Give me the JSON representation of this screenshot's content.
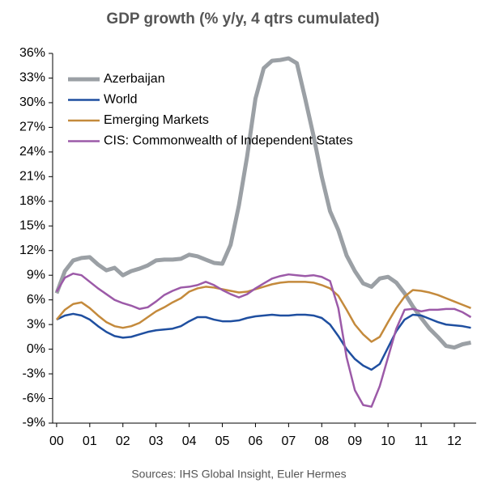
{
  "chart_data": {
    "type": "line",
    "title": "GDP growth (% y/y, 4 qtrs cumulated)",
    "source": "Sources: IHS Global Insight, Euler Hermes",
    "x": [
      0,
      0.25,
      0.5,
      0.75,
      1,
      1.25,
      1.5,
      1.75,
      2,
      2.25,
      2.5,
      2.75,
      3,
      3.25,
      3.5,
      3.75,
      4,
      4.25,
      4.5,
      4.75,
      5,
      5.25,
      5.5,
      5.75,
      6,
      6.25,
      6.5,
      6.75,
      7,
      7.25,
      7.5,
      7.75,
      8,
      8.25,
      8.5,
      8.75,
      9,
      9.25,
      9.5,
      9.75,
      10,
      10.25,
      10.5,
      10.75,
      11,
      11.25,
      11.5,
      11.75,
      12,
      12.25,
      12.5
    ],
    "series": [
      {
        "name": "Azerbaijan",
        "color": "#9ba0a5",
        "values": [
          6.8,
          9.5,
          10.8,
          11.1,
          11.2,
          10.3,
          9.6,
          9.9,
          9.0,
          9.5,
          9.8,
          10.2,
          10.8,
          10.9,
          10.9,
          11.0,
          11.5,
          11.3,
          10.9,
          10.5,
          10.4,
          12.7,
          17.5,
          23.5,
          30.5,
          34.2,
          35.1,
          35.2,
          35.4,
          34.8,
          30.5,
          26,
          21,
          16.8,
          14.5,
          11.4,
          9.5,
          8.0,
          7.6,
          8.6,
          8.8,
          8.1,
          6.8,
          5.2,
          3.8,
          2.5,
          1.5,
          0.4,
          0.2,
          0.6,
          0.8
        ]
      },
      {
        "name": "World",
        "color": "#1f4fa0",
        "values": [
          3.6,
          4.1,
          4.3,
          4.1,
          3.6,
          2.8,
          2.1,
          1.6,
          1.4,
          1.5,
          1.8,
          2.1,
          2.3,
          2.4,
          2.5,
          2.8,
          3.4,
          3.9,
          3.9,
          3.6,
          3.4,
          3.4,
          3.5,
          3.8,
          4.0,
          4.1,
          4.2,
          4.1,
          4.1,
          4.2,
          4.2,
          4.1,
          3.8,
          3.0,
          1.6,
          0.0,
          -1.2,
          -2.0,
          -2.5,
          -1.8,
          0.2,
          2.2,
          3.6,
          4.2,
          4.1,
          3.7,
          3.3,
          3.0,
          2.9,
          2.8,
          2.6
        ]
      },
      {
        "name": "Emerging Markets",
        "color": "#c48a3c",
        "values": [
          3.6,
          4.8,
          5.5,
          5.7,
          5.0,
          4.1,
          3.3,
          2.8,
          2.6,
          2.8,
          3.2,
          3.9,
          4.6,
          5.1,
          5.7,
          6.2,
          7.0,
          7.4,
          7.6,
          7.5,
          7.3,
          7.1,
          6.9,
          7.0,
          7.3,
          7.6,
          7.9,
          8.1,
          8.2,
          8.2,
          8.2,
          8.1,
          7.8,
          7.4,
          6.5,
          4.8,
          3.0,
          1.8,
          0.9,
          1.5,
          3.3,
          5.0,
          6.4,
          7.2,
          7.1,
          6.9,
          6.6,
          6.2,
          5.8,
          5.4,
          5.0
        ]
      },
      {
        "name": "CIS: Commonwealth of Independent States",
        "color": "#9c5aa8",
        "values": [
          7.0,
          8.7,
          9.2,
          9.0,
          8.2,
          7.4,
          6.7,
          6.0,
          5.6,
          5.3,
          4.9,
          5.1,
          5.8,
          6.6,
          7.1,
          7.5,
          7.6,
          7.8,
          8.2,
          7.8,
          7.2,
          6.7,
          6.3,
          6.7,
          7.4,
          8.0,
          8.6,
          8.9,
          9.1,
          9.0,
          8.9,
          9.0,
          8.8,
          8.3,
          5.0,
          -1.0,
          -5.0,
          -6.8,
          -7.0,
          -4.5,
          -1.0,
          2.5,
          4.8,
          4.9,
          4.6,
          4.8,
          4.8,
          4.9,
          4.9,
          4.5,
          3.9
        ]
      }
    ],
    "xlim": [
      -0.12,
      12.66
    ],
    "xticks": [
      {
        "value": 0,
        "label": "00"
      },
      {
        "value": 1,
        "label": "01"
      },
      {
        "value": 2,
        "label": "02"
      },
      {
        "value": 3,
        "label": "03"
      },
      {
        "value": 4,
        "label": "04"
      },
      {
        "value": 5,
        "label": "05"
      },
      {
        "value": 6,
        "label": "06"
      },
      {
        "value": 7,
        "label": "07"
      },
      {
        "value": 8,
        "label": "08"
      },
      {
        "value": 9,
        "label": "09"
      },
      {
        "value": 10,
        "label": "10"
      },
      {
        "value": 11,
        "label": "11"
      },
      {
        "value": 12,
        "label": "12"
      }
    ],
    "ylim": [
      -9,
      36
    ],
    "yticks": [
      {
        "value": 36,
        "label": "36%"
      },
      {
        "value": 33,
        "label": "33%"
      },
      {
        "value": 30,
        "label": "30%"
      },
      {
        "value": 27,
        "label": "27%"
      },
      {
        "value": 24,
        "label": "24%"
      },
      {
        "value": 21,
        "label": "21%"
      },
      {
        "value": 18,
        "label": "18%"
      },
      {
        "value": 15,
        "label": "15%"
      },
      {
        "value": 12,
        "label": "12%"
      },
      {
        "value": 9,
        "label": "9%"
      },
      {
        "value": 6,
        "label": "6%"
      },
      {
        "value": 3,
        "label": "3%"
      },
      {
        "value": 0,
        "label": "0%"
      },
      {
        "value": -3,
        "label": "-3%"
      },
      {
        "value": -6,
        "label": "-6%"
      },
      {
        "value": -9,
        "label": "-9%"
      }
    ],
    "grid": false,
    "legend": "upper-left"
  }
}
